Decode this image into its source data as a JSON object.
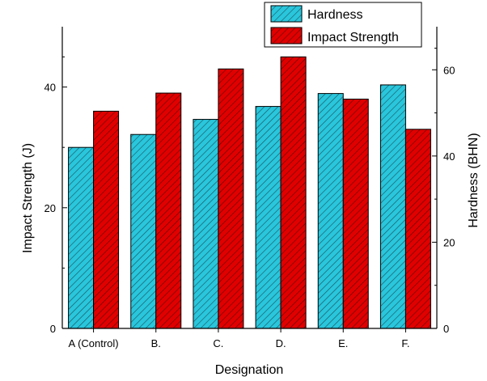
{
  "chart_data": {
    "type": "bar",
    "categories": [
      "A (Control)",
      "B.",
      "C.",
      "D.",
      "E.",
      "F."
    ],
    "series": [
      {
        "name": "Hardness",
        "axis": "right",
        "color": "#29c6dc",
        "values": [
          42,
          45,
          48.5,
          51.5,
          54.5,
          56.5
        ]
      },
      {
        "name": "Impact Strength",
        "axis": "left",
        "color": "#e00000",
        "values": [
          36,
          39,
          43,
          45,
          38,
          33
        ]
      }
    ],
    "xlabel": "Designation",
    "ylabel": "Impact Strength (J)",
    "y2label": "Hardness (BHN)",
    "ylim": [
      0,
      50
    ],
    "y2lim": [
      0,
      70
    ],
    "yticks": [
      0,
      20,
      40
    ],
    "y2ticks": [
      0,
      20,
      40,
      60
    ],
    "legend_position": "top-right",
    "pattern": "diagonal-hatch"
  }
}
